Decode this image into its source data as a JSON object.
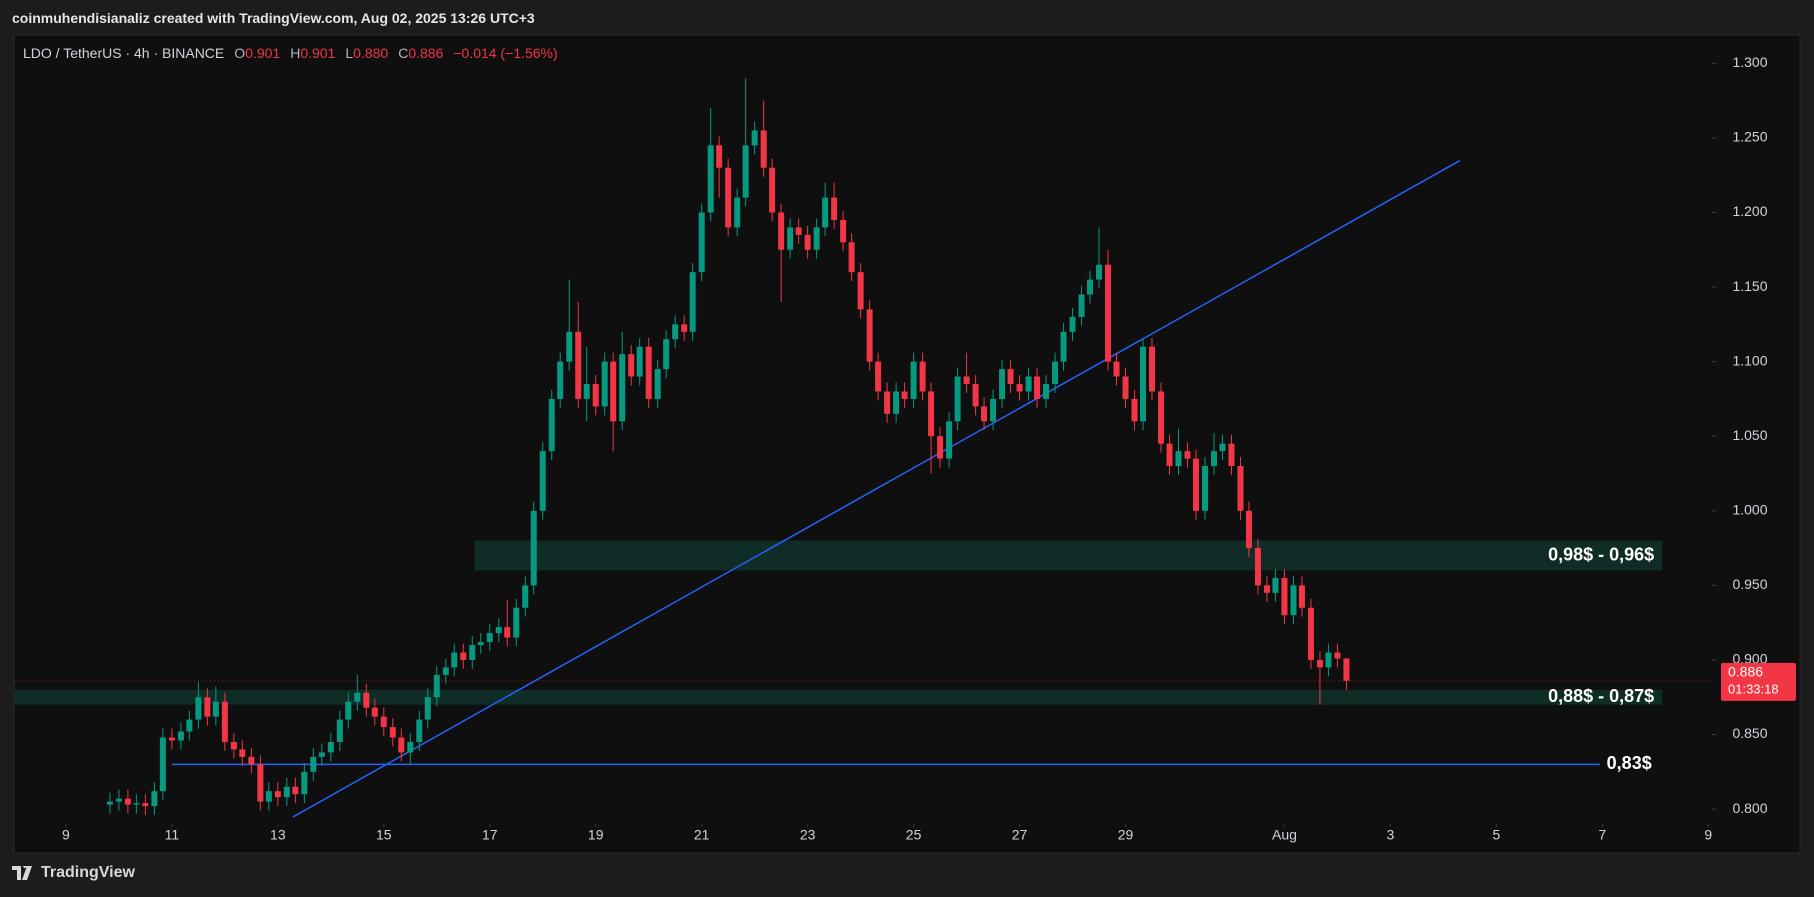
{
  "header": {
    "attribution": "coinmuhendisianaliz created with TradingView.com, Aug 02, 2025 13:26 UTC+3"
  },
  "chart_data": {
    "type": "candlestick",
    "legend": {
      "symbol": "LDO / TetherUS · 4h · BINANCE",
      "fields": [
        {
          "key": "O",
          "value": "0.901"
        },
        {
          "key": "H",
          "value": "0.901"
        },
        {
          "key": "L",
          "value": "0.880"
        },
        {
          "key": "C",
          "value": "0.886"
        }
      ],
      "change": "−0.014 (−1.56%)"
    },
    "x": [
      0.83,
      1,
      1.17,
      1.33,
      1.5,
      1.67,
      1.83,
      2,
      2.17,
      2.33,
      2.5,
      2.67,
      2.83,
      3,
      3.17,
      3.33,
      3.5,
      3.67,
      3.83,
      4,
      4.17,
      4.33,
      4.5,
      4.67,
      4.83,
      5,
      5.17,
      5.33,
      5.5,
      5.67,
      5.83,
      6,
      6.17,
      6.33,
      6.5,
      6.67,
      6.83,
      7,
      7.17,
      7.33,
      7.5,
      7.67,
      7.83,
      8,
      8.17,
      8.33,
      8.5,
      8.67,
      8.83,
      9,
      9.17,
      9.33,
      9.5,
      9.67,
      9.83,
      10,
      10.17,
      10.33,
      10.5,
      10.67,
      10.83,
      11,
      11.17,
      11.33,
      11.5,
      11.67,
      11.83,
      12,
      12.17,
      12.33,
      12.5,
      12.67,
      12.83,
      13,
      13.17,
      13.33,
      13.5,
      13.67,
      13.83,
      14,
      14.17,
      14.33,
      14.5,
      14.67,
      14.83,
      15,
      15.17,
      15.33,
      15.5,
      15.67,
      15.83,
      16,
      16.17,
      16.33,
      16.5,
      16.67,
      16.83,
      17,
      17.17,
      17.33,
      17.5,
      17.67,
      17.83,
      18,
      18.17,
      18.33,
      18.5,
      18.67,
      18.83,
      19,
      19.17,
      19.33,
      19.5,
      19.67,
      19.83,
      20,
      20.17,
      20.33,
      20.5,
      20.67,
      20.83,
      21,
      21.17,
      21.33,
      21.5,
      21.67,
      21.83,
      22,
      22.17,
      22.33,
      22.5,
      22.67,
      22.83,
      23,
      23.17,
      23.33,
      23.5,
      23.67,
      23.83,
      24,
      24.17
    ],
    "open": [
      0.803,
      0.805,
      0.807,
      0.803,
      0.804,
      0.802,
      0.812,
      0.848,
      0.846,
      0.852,
      0.86,
      0.875,
      0.862,
      0.872,
      0.845,
      0.84,
      0.835,
      0.83,
      0.805,
      0.812,
      0.808,
      0.815,
      0.81,
      0.825,
      0.835,
      0.838,
      0.845,
      0.86,
      0.872,
      0.878,
      0.868,
      0.862,
      0.855,
      0.848,
      0.838,
      0.845,
      0.86,
      0.875,
      0.89,
      0.895,
      0.905,
      0.9,
      0.91,
      0.912,
      0.918,
      0.922,
      0.915,
      0.935,
      0.95,
      1.0,
      1.04,
      1.075,
      1.1,
      1.12,
      1.075,
      1.085,
      1.07,
      1.1,
      1.06,
      1.105,
      1.09,
      1.11,
      1.075,
      1.095,
      1.115,
      1.125,
      1.12,
      1.16,
      1.2,
      1.245,
      1.23,
      1.19,
      1.21,
      1.245,
      1.255,
      1.23,
      1.2,
      1.175,
      1.19,
      1.185,
      1.175,
      1.19,
      1.21,
      1.195,
      1.18,
      1.16,
      1.135,
      1.1,
      1.08,
      1.065,
      1.08,
      1.075,
      1.1,
      1.08,
      1.05,
      1.035,
      1.06,
      1.09,
      1.085,
      1.07,
      1.06,
      1.075,
      1.095,
      1.085,
      1.08,
      1.09,
      1.075,
      1.085,
      1.1,
      1.12,
      1.13,
      1.145,
      1.155,
      1.165,
      1.1,
      1.09,
      1.075,
      1.06,
      1.11,
      1.08,
      1.045,
      1.03,
      1.04,
      1.035,
      1.0,
      1.03,
      1.04,
      1.045,
      1.03,
      1.0,
      0.975,
      0.95,
      0.945,
      0.955,
      0.93,
      0.95,
      0.935,
      0.9,
      0.895,
      0.905,
      0.901
    ],
    "high": [
      0.811,
      0.813,
      0.813,
      0.81,
      0.81,
      0.818,
      0.854,
      0.854,
      0.858,
      0.866,
      0.885,
      0.881,
      0.882,
      0.878,
      0.851,
      0.846,
      0.841,
      0.836,
      0.818,
      0.818,
      0.821,
      0.821,
      0.831,
      0.841,
      0.844,
      0.851,
      0.866,
      0.878,
      0.89,
      0.884,
      0.874,
      0.868,
      0.861,
      0.854,
      0.851,
      0.866,
      0.881,
      0.896,
      0.901,
      0.911,
      0.911,
      0.916,
      0.918,
      0.924,
      0.928,
      0.94,
      0.941,
      0.956,
      1.006,
      1.046,
      1.081,
      1.106,
      1.155,
      1.14,
      1.11,
      1.091,
      1.106,
      1.106,
      1.12,
      1.111,
      1.116,
      1.116,
      1.101,
      1.121,
      1.131,
      1.131,
      1.166,
      1.206,
      1.27,
      1.251,
      1.236,
      1.216,
      1.29,
      1.261,
      1.275,
      1.236,
      1.206,
      1.196,
      1.196,
      1.191,
      1.196,
      1.22,
      1.22,
      1.201,
      1.186,
      1.166,
      1.141,
      1.106,
      1.086,
      1.086,
      1.086,
      1.106,
      1.106,
      1.086,
      1.056,
      1.066,
      1.096,
      1.106,
      1.091,
      1.076,
      1.081,
      1.101,
      1.101,
      1.091,
      1.096,
      1.096,
      1.091,
      1.106,
      1.126,
      1.136,
      1.151,
      1.161,
      1.19,
      1.175,
      1.106,
      1.096,
      1.081,
      1.116,
      1.116,
      1.086,
      1.051,
      1.055,
      1.046,
      1.041,
      1.036,
      1.052,
      1.051,
      1.051,
      1.036,
      1.006,
      0.981,
      0.956,
      0.961,
      0.961,
      0.956,
      0.956,
      0.941,
      0.906,
      0.911,
      0.911,
      0.901
    ],
    "low": [
      0.797,
      0.799,
      0.797,
      0.797,
      0.796,
      0.796,
      0.806,
      0.84,
      0.84,
      0.846,
      0.854,
      0.856,
      0.856,
      0.839,
      0.834,
      0.829,
      0.824,
      0.799,
      0.799,
      0.802,
      0.802,
      0.804,
      0.804,
      0.819,
      0.829,
      0.832,
      0.839,
      0.854,
      0.866,
      0.862,
      0.856,
      0.849,
      0.842,
      0.832,
      0.83,
      0.839,
      0.854,
      0.869,
      0.884,
      0.889,
      0.894,
      0.894,
      0.904,
      0.906,
      0.912,
      0.909,
      0.909,
      0.929,
      0.944,
      0.994,
      1.034,
      1.069,
      1.094,
      1.069,
      1.06,
      1.064,
      1.064,
      1.04,
      1.054,
      1.084,
      1.084,
      1.069,
      1.069,
      1.089,
      1.109,
      1.114,
      1.114,
      1.154,
      1.194,
      1.21,
      1.184,
      1.184,
      1.204,
      1.239,
      1.224,
      1.194,
      1.14,
      1.169,
      1.179,
      1.169,
      1.169,
      1.184,
      1.189,
      1.174,
      1.154,
      1.129,
      1.094,
      1.074,
      1.059,
      1.059,
      1.069,
      1.069,
      1.074,
      1.025,
      1.029,
      1.029,
      1.054,
      1.079,
      1.064,
      1.054,
      1.054,
      1.069,
      1.079,
      1.074,
      1.074,
      1.069,
      1.069,
      1.079,
      1.094,
      1.114,
      1.124,
      1.139,
      1.149,
      1.094,
      1.084,
      1.069,
      1.054,
      1.054,
      1.074,
      1.039,
      1.024,
      1.024,
      1.029,
      0.994,
      0.994,
      1.024,
      1.034,
      1.024,
      0.994,
      0.969,
      0.944,
      0.939,
      0.939,
      0.924,
      0.924,
      0.929,
      0.894,
      0.87,
      0.889,
      0.895,
      0.88
    ],
    "close": [
      0.805,
      0.807,
      0.803,
      0.804,
      0.802,
      0.812,
      0.848,
      0.846,
      0.852,
      0.86,
      0.875,
      0.862,
      0.872,
      0.845,
      0.84,
      0.835,
      0.83,
      0.805,
      0.812,
      0.808,
      0.815,
      0.81,
      0.825,
      0.835,
      0.838,
      0.845,
      0.86,
      0.872,
      0.878,
      0.868,
      0.862,
      0.855,
      0.848,
      0.838,
      0.845,
      0.86,
      0.875,
      0.89,
      0.895,
      0.905,
      0.9,
      0.91,
      0.912,
      0.918,
      0.922,
      0.915,
      0.935,
      0.95,
      1.0,
      1.04,
      1.075,
      1.1,
      1.12,
      1.075,
      1.085,
      1.07,
      1.1,
      1.06,
      1.105,
      1.09,
      1.11,
      1.075,
      1.095,
      1.115,
      1.125,
      1.12,
      1.16,
      1.2,
      1.245,
      1.23,
      1.19,
      1.21,
      1.245,
      1.255,
      1.23,
      1.2,
      1.175,
      1.19,
      1.185,
      1.175,
      1.19,
      1.21,
      1.195,
      1.18,
      1.16,
      1.135,
      1.1,
      1.08,
      1.065,
      1.08,
      1.075,
      1.1,
      1.08,
      1.05,
      1.035,
      1.06,
      1.09,
      1.085,
      1.07,
      1.06,
      1.075,
      1.095,
      1.085,
      1.08,
      1.09,
      1.075,
      1.085,
      1.1,
      1.12,
      1.13,
      1.145,
      1.155,
      1.165,
      1.1,
      1.09,
      1.075,
      1.06,
      1.11,
      1.08,
      1.045,
      1.03,
      1.04,
      1.035,
      1.0,
      1.03,
      1.04,
      1.045,
      1.03,
      1.0,
      0.975,
      0.95,
      0.945,
      0.955,
      0.93,
      0.95,
      0.935,
      0.9,
      0.895,
      0.905,
      0.901,
      0.886
    ],
    "up_color": "#089981",
    "down_color": "#f23645",
    "xlim": [
      -0.98,
      31.07
    ],
    "xticks": [
      {
        "value": 0,
        "label": "9"
      },
      {
        "value": 2,
        "label": "11"
      },
      {
        "value": 4,
        "label": "13"
      },
      {
        "value": 6,
        "label": "15"
      },
      {
        "value": 8,
        "label": "17"
      },
      {
        "value": 10,
        "label": "19"
      },
      {
        "value": 12,
        "label": "21"
      },
      {
        "value": 14,
        "label": "23"
      },
      {
        "value": 16,
        "label": "25"
      },
      {
        "value": 18,
        "label": "27"
      },
      {
        "value": 20,
        "label": "29"
      },
      {
        "value": 23,
        "label": "Aug"
      },
      {
        "value": 25,
        "label": "3"
      },
      {
        "value": 27,
        "label": "5"
      },
      {
        "value": 29,
        "label": "7"
      },
      {
        "value": 31,
        "label": "9"
      }
    ],
    "ylim": [
      0.79,
      1.319
    ],
    "yticks": [
      {
        "value": 1.3,
        "label": "1.300"
      },
      {
        "value": 1.25,
        "label": "1.250"
      },
      {
        "value": 1.2,
        "label": "1.200"
      },
      {
        "value": 1.15,
        "label": "1.150"
      },
      {
        "value": 1.1,
        "label": "1.100"
      },
      {
        "value": 1.05,
        "label": "1.050"
      },
      {
        "value": 1.0,
        "label": "1.000"
      },
      {
        "value": 0.95,
        "label": "0.950"
      },
      {
        "value": 0.9,
        "label": "0.900"
      },
      {
        "value": 0.85,
        "label": "0.850"
      },
      {
        "value": 0.8,
        "label": "0.800"
      }
    ],
    "grid": false,
    "zones": [
      {
        "label": "0,98$ - 0,96$",
        "from": 0.96,
        "to": 0.98,
        "x_start": 7.71,
        "x_end": 30.13,
        "color": "#0f2c27"
      },
      {
        "label": "0,88$ - 0,87$",
        "from": 0.87,
        "to": 0.88,
        "x_end": 30.13,
        "color": "#0f2c27"
      }
    ],
    "levels": [
      {
        "label": "0,83$",
        "value": 0.83,
        "x_start": 2,
        "x_end": 28.95,
        "color": "#2962ff"
      }
    ],
    "trendline": {
      "x": [
        4.28,
        26.31
      ],
      "y": [
        0.7946,
        1.2348
      ],
      "color": "#2962ff"
    },
    "last_price": {
      "value": 0.886,
      "countdown": "01:33:18",
      "color": "#f23645"
    }
  },
  "footer": {
    "brand": "TradingView"
  }
}
